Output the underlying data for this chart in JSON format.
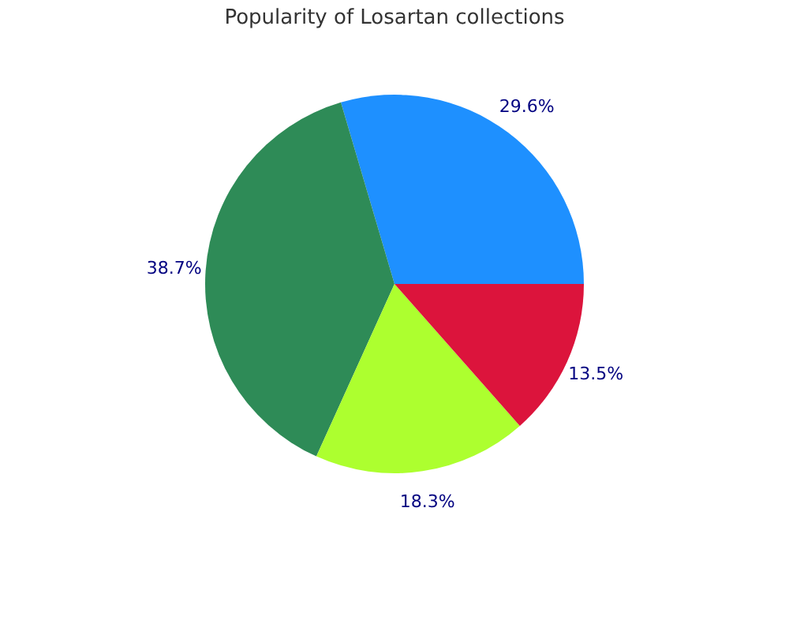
{
  "chart_data": {
    "type": "pie",
    "title": "Popularity of Losartan collections",
    "categories": [
      null,
      null,
      null,
      null
    ],
    "values": [
      29.6,
      38.7,
      18.3,
      13.5
    ],
    "value_labels": [
      "29.6%",
      "38.7%",
      "18.3%",
      "13.5%"
    ],
    "colors": [
      "#1e90ff",
      "#2e8b57",
      "#adff2f",
      "#dc143c"
    ],
    "legend": false
  }
}
